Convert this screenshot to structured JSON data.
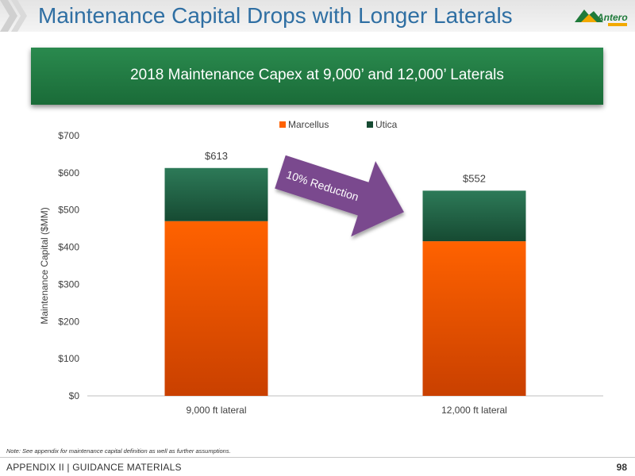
{
  "header": {
    "title": "Maintenance Capital Drops with Longer Laterals",
    "logo_text": "Antero"
  },
  "banner": {
    "text": "2018 Maintenance Capex at 9,000’ and 12,000’ Laterals"
  },
  "colors": {
    "marcellus_top": "#ff6200",
    "marcellus_bottom": "#c94000",
    "utica_top": "#2d7a58",
    "utica_bottom": "#164a32",
    "arrow": "#7a4a8e",
    "title": "#2f6fa3"
  },
  "chart_data": {
    "type": "bar",
    "stacked": true,
    "categories": [
      "9,000 ft lateral",
      "12,000 ft lateral"
    ],
    "series": [
      {
        "name": "Marcellus",
        "values": [
          470,
          416
        ]
      },
      {
        "name": "Utica",
        "values": [
          143,
          136
        ]
      }
    ],
    "totals": [
      613,
      552
    ],
    "total_labels": [
      "$613",
      "$552"
    ],
    "ylabel": "Maintenance Capital ($MM)",
    "ylim": [
      0,
      700
    ],
    "yticks": [
      0,
      100,
      200,
      300,
      400,
      500,
      600,
      700
    ],
    "ytick_labels": [
      "$0",
      "$100",
      "$200",
      "$300",
      "$400",
      "$500",
      "$600",
      "$700"
    ],
    "legend_position": "top",
    "grid": false,
    "annotation": "10% Reduction"
  },
  "footer": {
    "note": "Note:  See appendix for maintenance capital definition as well as further assumptions.",
    "section": "APPENDIX II | GUIDANCE MATERIALS",
    "page": "98"
  }
}
